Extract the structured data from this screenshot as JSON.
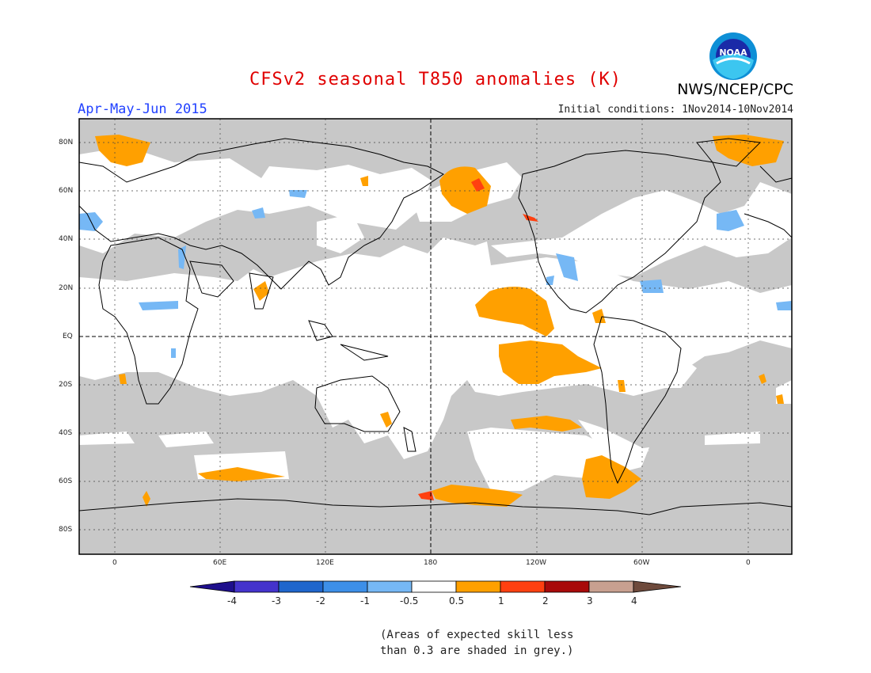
{
  "header": {
    "title": "CFSv2 seasonal T850 anomalies (K)",
    "season": "Apr-May-Jun 2015",
    "initial_conditions": "Initial conditions: 1Nov2014-10Nov2014",
    "agency": "NWS/NCEP/CPC",
    "logo_text": "NOAA"
  },
  "map": {
    "lat_labels": [
      "80N",
      "60N",
      "40N",
      "20N",
      "EQ",
      "20S",
      "40S",
      "60S",
      "80S"
    ],
    "lon_labels": [
      "0",
      "60E",
      "120E",
      "180",
      "120W",
      "60W",
      "0"
    ]
  },
  "colorbar": {
    "labels": [
      "-4",
      "-3",
      "-2",
      "-1",
      "-0.5",
      "0.5",
      "1",
      "2",
      "3",
      "4"
    ],
    "colors": [
      "#1e0f8c",
      "#4433cc",
      "#1f66cc",
      "#3d8fe8",
      "#76b8f5",
      "#ffffff",
      "#ffa000",
      "#ff4010",
      "#a80a0a",
      "#c8a090",
      "#6e4a3c"
    ]
  },
  "footnote": {
    "line1": "(Areas of expected skill less",
    "line2": "than 0.3 are shaded in grey.)"
  },
  "colors": {
    "grey": "#c8c8c8",
    "orange": "#ffa000",
    "red": "#ff4010",
    "blue": "#76b8f5"
  }
}
